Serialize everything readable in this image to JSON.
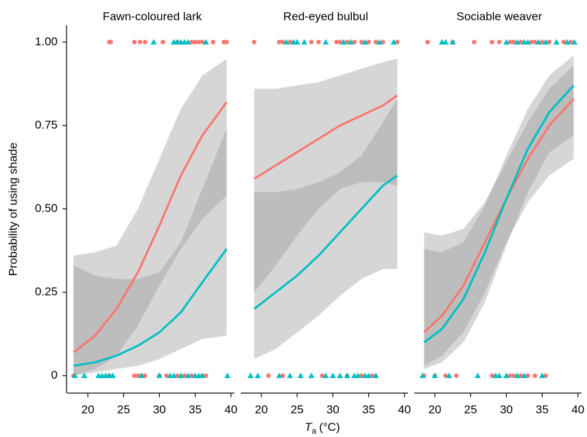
{
  "chart_data": {
    "type": "line",
    "y_label": "Probability of using shade",
    "x_label": {
      "symbol": "T",
      "subscript": "a",
      "unit": "(°C)"
    },
    "ylim": [
      -0.05,
      1.05
    ],
    "yticks": [
      0,
      0.25,
      {
        "value": 0.5,
        "label": "0.50"
      },
      0.75,
      {
        "value": 1,
        "label": "1.00"
      }
    ],
    "xlim": [
      17.5,
      40.5
    ],
    "xticks": [
      20,
      25,
      30,
      35,
      40
    ],
    "ribbon_color": "#999999",
    "panels": [
      {
        "title": "Fawn-coloured lark",
        "x": [
          18,
          21,
          24,
          27,
          30,
          33,
          36,
          39.4
        ],
        "series": [
          {
            "color": "#F8766D",
            "values": [
              0.07,
              0.12,
              0.2,
              0.31,
              0.45,
              0.6,
              0.72,
              0.82
            ],
            "lower": [
              0.0,
              0.02,
              0.06,
              0.15,
              0.27,
              0.38,
              0.47,
              0.54
            ],
            "upper": [
              0.36,
              0.37,
              0.39,
              0.5,
              0.65,
              0.8,
              0.9,
              0.95
            ]
          },
          {
            "color": "#00BFC4",
            "values": [
              0.03,
              0.04,
              0.06,
              0.09,
              0.13,
              0.19,
              0.28,
              0.38
            ],
            "lower": [
              0.0,
              0.01,
              0.02,
              0.03,
              0.05,
              0.08,
              0.11,
              0.12
            ],
            "upper": [
              0.33,
              0.3,
              0.29,
              0.29,
              0.31,
              0.4,
              0.56,
              0.74
            ]
          }
        ],
        "points": [
          {
            "color": "#F8766D",
            "marker": "circle",
            "x": [
              23,
              23.2,
              26.5,
              27.3,
              28,
              30.5,
              32.5,
              34.5,
              35,
              35.5,
              36,
              37.5,
              39,
              39.4,
              18,
              23,
              26.5,
              27,
              27.5,
              28,
              30,
              31,
              32.5,
              33.5,
              34.5,
              36,
              36.5
            ],
            "y": [
              1,
              1,
              1,
              1,
              1,
              1,
              1,
              1,
              1,
              1,
              1,
              1,
              1,
              1,
              0,
              0,
              0,
              0,
              0,
              0,
              0,
              0,
              0,
              0,
              0,
              0,
              0
            ]
          },
          {
            "color": "#00BFC4",
            "marker": "triangle",
            "x": [
              29.2,
              32,
              32.5,
              33,
              33.5,
              34,
              36.5,
              18.2,
              19.5,
              21.5,
              22,
              22.5,
              23,
              23.5,
              27.5,
              30,
              31.5,
              32,
              33,
              34,
              35,
              35.5,
              36,
              39.5
            ],
            "y": [
              1,
              1,
              1,
              1,
              1,
              1,
              1,
              0,
              0,
              0,
              0,
              0,
              0,
              0,
              0,
              0,
              0,
              0,
              0,
              0,
              0,
              0,
              0,
              0
            ]
          }
        ]
      },
      {
        "title": "Red-eyed bulbul",
        "x": [
          19,
          22,
          25,
          28,
          31,
          34,
          37,
          39
        ],
        "series": [
          {
            "color": "#F8766D",
            "values": [
              0.59,
              0.63,
              0.67,
              0.71,
              0.75,
              0.78,
              0.81,
              0.84
            ],
            "lower": [
              0.25,
              0.33,
              0.42,
              0.5,
              0.56,
              0.58,
              0.58,
              0.57
            ],
            "upper": [
              0.86,
              0.86,
              0.87,
              0.88,
              0.9,
              0.92,
              0.94,
              0.95
            ]
          },
          {
            "color": "#00BFC4",
            "values": [
              0.2,
              0.25,
              0.3,
              0.36,
              0.43,
              0.5,
              0.57,
              0.6
            ],
            "lower": [
              0.05,
              0.08,
              0.13,
              0.18,
              0.24,
              0.29,
              0.32,
              0.32
            ],
            "upper": [
              0.55,
              0.55,
              0.56,
              0.58,
              0.61,
              0.66,
              0.76,
              0.83
            ]
          }
        ],
        "points": [
          {
            "color": "#F8766D",
            "marker": "circle",
            "x": [
              19,
              22.5,
              23,
              24,
              27,
              28,
              30.5,
              31,
              32,
              33,
              34,
              35,
              36,
              37,
              39,
              21,
              23,
              28.5,
              32,
              34,
              35.5
            ],
            "y": [
              1,
              1,
              1,
              1,
              1,
              1,
              1,
              1,
              1,
              1,
              1,
              1,
              1,
              1,
              1,
              0,
              0,
              0,
              0,
              0,
              0
            ]
          },
          {
            "color": "#00BFC4",
            "marker": "triangle",
            "x": [
              23.5,
              24.5,
              25,
              26,
              29,
              31.5,
              32.5,
              34.5,
              36.5,
              38.5,
              18.5,
              19.5,
              22.5,
              24,
              25.5,
              27,
              29,
              30,
              31,
              32,
              33,
              33.5,
              34.5,
              35,
              36
            ],
            "y": [
              1,
              1,
              1,
              1,
              1,
              1,
              1,
              1,
              1,
              1,
              0,
              0,
              0,
              0,
              0,
              0,
              0,
              0,
              0,
              0,
              0,
              0,
              0,
              0,
              0
            ]
          }
        ]
      },
      {
        "title": "Sociable weaver",
        "x": [
          18.5,
          21,
          24,
          27,
          30,
          33,
          36,
          39.4
        ],
        "series": [
          {
            "color": "#F8766D",
            "values": [
              0.13,
              0.18,
              0.27,
              0.4,
              0.53,
              0.65,
              0.75,
              0.83
            ],
            "lower": [
              0.03,
              0.06,
              0.13,
              0.25,
              0.4,
              0.52,
              0.6,
              0.65
            ],
            "upper": [
              0.43,
              0.42,
              0.44,
              0.52,
              0.64,
              0.76,
              0.86,
              0.93
            ]
          },
          {
            "color": "#00BFC4",
            "values": [
              0.1,
              0.14,
              0.23,
              0.37,
              0.53,
              0.68,
              0.79,
              0.87
            ],
            "lower": [
              0.02,
              0.04,
              0.1,
              0.22,
              0.39,
              0.55,
              0.67,
              0.72
            ],
            "upper": [
              0.38,
              0.37,
              0.4,
              0.51,
              0.66,
              0.8,
              0.9,
              0.96
            ]
          }
        ],
        "points": [
          {
            "color": "#F8766D",
            "marker": "circle",
            "x": [
              19,
              22.5,
              25.5,
              28,
              29,
              30.5,
              31,
              32,
              33.5,
              34,
              35,
              36,
              38,
              39,
              18.5,
              20,
              21.5,
              23,
              28,
              30.5,
              31,
              32,
              33,
              34,
              35.5
            ],
            "y": [
              1,
              1,
              1,
              1,
              1,
              1,
              1,
              1,
              1,
              1,
              1,
              1,
              1,
              1,
              0,
              0,
              0,
              0,
              0,
              0,
              0,
              0,
              0,
              0,
              0
            ]
          },
          {
            "color": "#00BFC4",
            "marker": "triangle",
            "x": [
              21,
              21.5,
              22.5,
              30,
              31.5,
              32.5,
              33,
              34.5,
              35.5,
              37,
              38.5,
              39.5,
              18.3,
              20,
              22,
              26,
              28.5,
              29,
              30,
              31.5,
              32.5,
              35
            ],
            "y": [
              1,
              1,
              1,
              1,
              1,
              1,
              1,
              1,
              1,
              1,
              1,
              1,
              0,
              0,
              0,
              0,
              0,
              0,
              0,
              0,
              0,
              0
            ]
          }
        ]
      }
    ]
  }
}
